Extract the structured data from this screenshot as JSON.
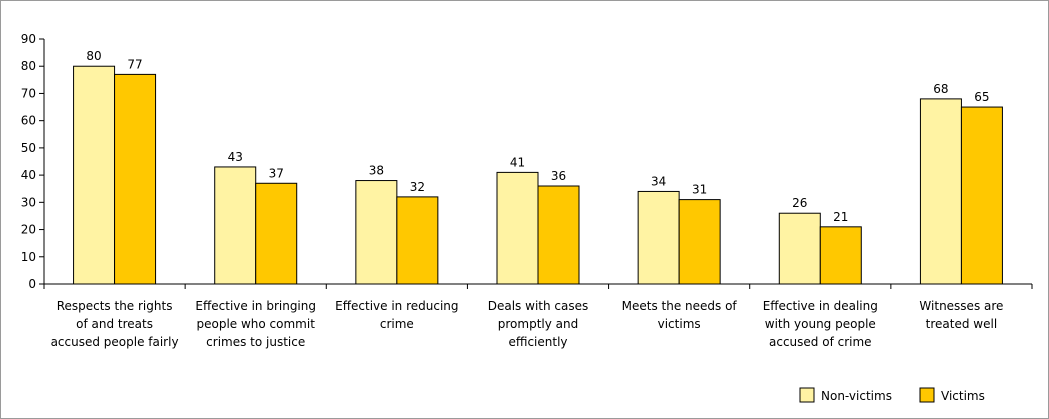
{
  "chart_data": {
    "type": "bar",
    "title": "",
    "xlabel": "",
    "ylabel": "",
    "ylim": [
      0,
      90
    ],
    "yticks": [
      0,
      10,
      20,
      30,
      40,
      50,
      60,
      70,
      80,
      90
    ],
    "grid": false,
    "legend_position": "bottom-right",
    "categories": [
      [
        "Respects the rights",
        "of and treats",
        "accused people fairly"
      ],
      [
        "Effective in bringing",
        "people who commit",
        "crimes to justice"
      ],
      [
        "Effective in reducing",
        "crime"
      ],
      [
        "Deals with cases",
        "promptly and",
        "efficiently"
      ],
      [
        "Meets the needs of",
        "victims"
      ],
      [
        "Effective in dealing",
        "with young people",
        "accused of crime"
      ],
      [
        "Witnesses are",
        "treated well"
      ]
    ],
    "series": [
      {
        "name": "Non-victims",
        "color": "#FFF3A3",
        "values": [
          80,
          43,
          38,
          41,
          34,
          26,
          68
        ]
      },
      {
        "name": "Victims",
        "color": "#FFC800",
        "values": [
          77,
          37,
          32,
          36,
          31,
          21,
          65
        ]
      }
    ],
    "colors": {
      "frame": "#9a9a9a",
      "axis": "#000000",
      "bar_outline": "#000000"
    }
  }
}
